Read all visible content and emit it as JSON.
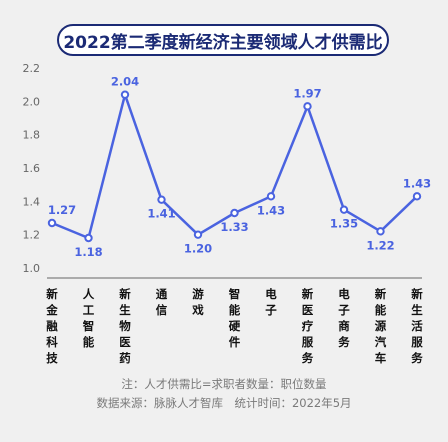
{
  "title": "2022第二季度新经济主要领域人才供需比",
  "note": "注：人才供需比=求职者数量：职位数量",
  "source": "数据来源：脉脉人才智库　统计时间：2022年5月",
  "colors": {
    "line": "#4a63e0",
    "label": "#4a63e0",
    "title": "#1b2a75",
    "axis": "#666666",
    "background": "#f0f0f0"
  },
  "chart_data": {
    "type": "line",
    "title": "2022第二季度新经济主要领域人才供需比",
    "categories": [
      "新金融科技",
      "人工智能",
      "新生物医药",
      "通信",
      "游戏",
      "智能硬件",
      "电子",
      "新医疗服务",
      "电子商务",
      "新能源汽车",
      "新生活服务"
    ],
    "series": [
      {
        "values": [
          1.27,
          1.18,
          2.04,
          1.41,
          1.2,
          1.33,
          1.43,
          1.97,
          1.35,
          1.22,
          1.43
        ]
      }
    ],
    "value_labels": [
      "1.27",
      "1.18",
      "2.04",
      "1.41",
      "1.20",
      "1.33",
      "1.43",
      "1.97",
      "1.35",
      "1.22",
      "1.43"
    ],
    "yticks": [
      "1.0",
      "1.2",
      "1.4",
      "1.6",
      "1.8",
      "2.0",
      "2.2"
    ],
    "ylim": [
      1.0,
      2.2
    ],
    "grid": false,
    "legend": "none",
    "xlabel": "",
    "ylabel": ""
  }
}
